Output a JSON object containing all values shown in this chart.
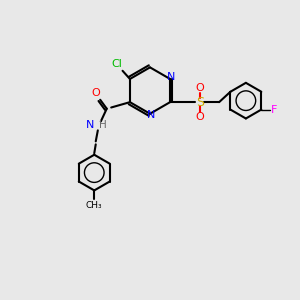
{
  "bg_color": "#e8e8e8",
  "bond_color": "#000000",
  "colors": {
    "N": "#0000ff",
    "O": "#ff0000",
    "S": "#ccaa00",
    "Cl": "#00bb00",
    "F": "#ff00ff",
    "C": "#000000",
    "H": "#666666"
  },
  "figsize": [
    3.0,
    3.0
  ],
  "dpi": 100
}
